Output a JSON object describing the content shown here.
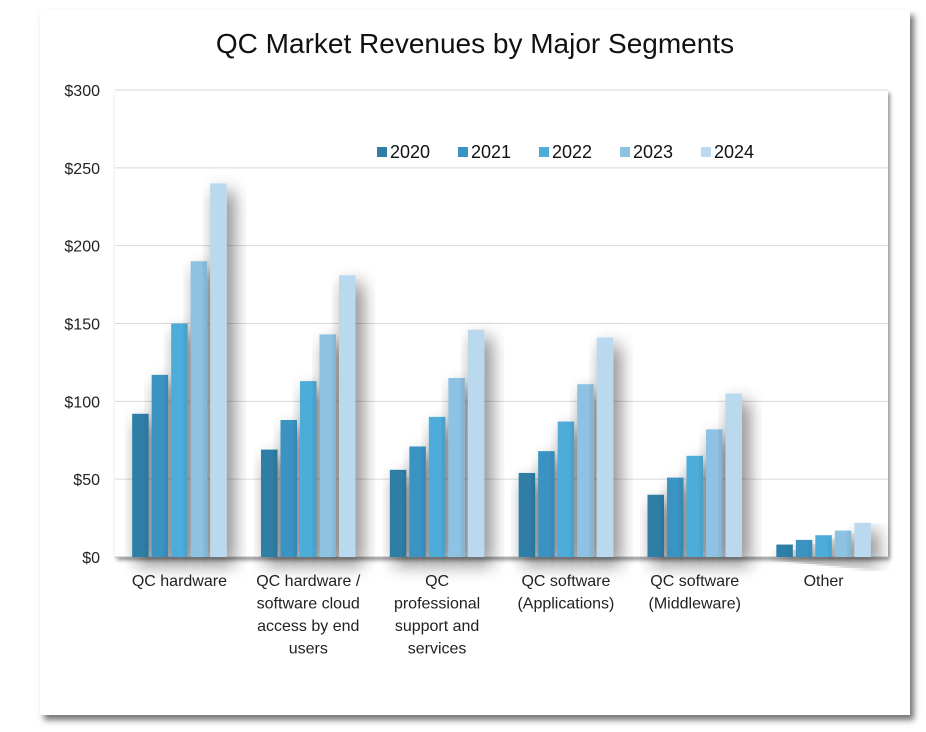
{
  "chart_data": {
    "type": "bar",
    "title": "QC Market Revenues by Major Segments",
    "xlabel": "",
    "ylabel": "",
    "ylim": [
      0,
      300
    ],
    "yticks": [
      "$0",
      "$50",
      "$100",
      "$150",
      "$200",
      "$250",
      "$300"
    ],
    "ytick_values": [
      0,
      50,
      100,
      150,
      200,
      250,
      300
    ],
    "grid": true,
    "legend_position": "top-right",
    "categories": [
      [
        "QC hardware"
      ],
      [
        "QC hardware /",
        "software cloud",
        "access by end",
        "users"
      ],
      [
        "QC",
        "professional",
        "support and",
        "services"
      ],
      [
        "QC software",
        "(Applications)"
      ],
      [
        "QC software",
        "(Middleware)"
      ],
      [
        "Other"
      ]
    ],
    "series": [
      {
        "name": "2020",
        "color": "#2e7ea6",
        "values": [
          92,
          69,
          56,
          54,
          40,
          8
        ]
      },
      {
        "name": "2021",
        "color": "#3a93c2",
        "values": [
          117,
          88,
          71,
          68,
          51,
          11
        ]
      },
      {
        "name": "2022",
        "color": "#4eacd9",
        "values": [
          150,
          113,
          90,
          87,
          65,
          14
        ]
      },
      {
        "name": "2023",
        "color": "#8dc2e2",
        "values": [
          190,
          143,
          115,
          111,
          82,
          17
        ]
      },
      {
        "name": "2024",
        "color": "#bad8ee",
        "values": [
          240,
          181,
          146,
          141,
          105,
          22
        ]
      }
    ]
  }
}
